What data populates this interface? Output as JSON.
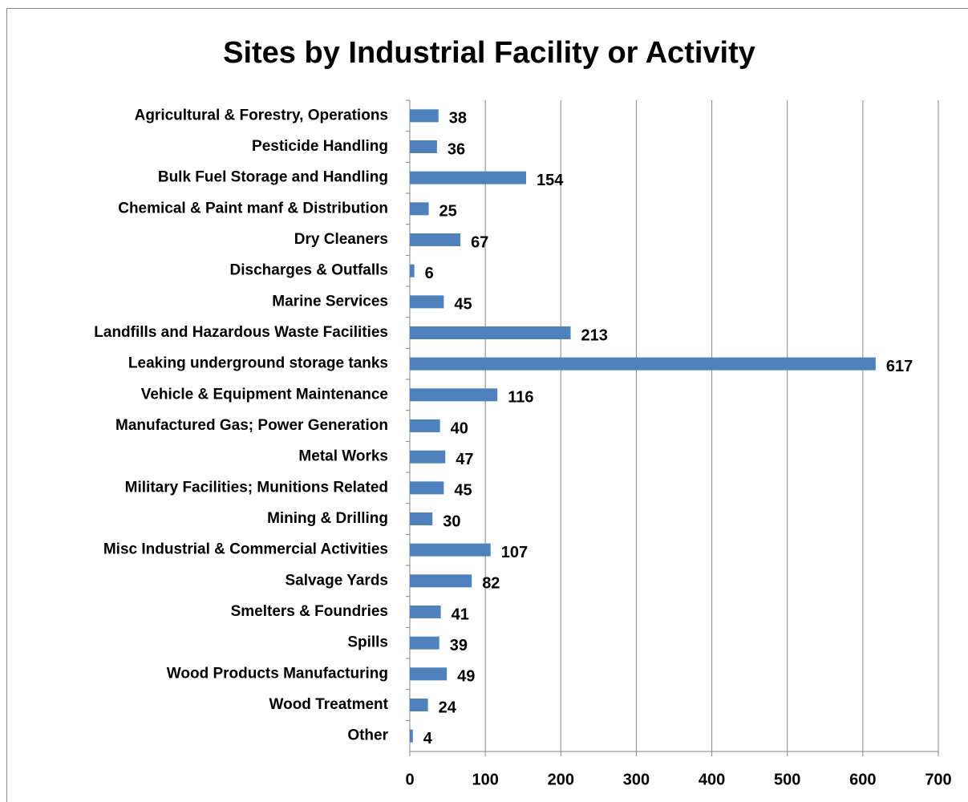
{
  "chart_data": {
    "type": "bar",
    "orientation": "horizontal",
    "title": "Sites by Industrial Facility or Activity",
    "categories": [
      "Agricultural & Forestry, Operations",
      "Pesticide Handling",
      "Bulk Fuel Storage and Handling",
      "Chemical & Paint manf & Distribution",
      "Dry Cleaners",
      "Discharges & Outfalls",
      "Marine Services",
      "Landfills and Hazardous Waste Facilities",
      "Leaking underground storage tanks",
      "Vehicle & Equipment Maintenance",
      "Manufactured Gas; Power Generation",
      "Metal Works",
      "Military Facilities; Munitions Related",
      "Mining & Drilling",
      "Misc Industrial & Commercial Activities",
      "Salvage Yards",
      "Smelters & Foundries",
      "Spills",
      "Wood Products Manufacturing",
      "Wood Treatment",
      "Other"
    ],
    "values": [
      38,
      36,
      154,
      25,
      67,
      6,
      45,
      213,
      617,
      116,
      40,
      47,
      45,
      30,
      107,
      82,
      41,
      39,
      49,
      24,
      4
    ],
    "color": "#4f81bd",
    "xlim": [
      0,
      700
    ],
    "xticks": [
      0,
      100,
      200,
      300,
      400,
      500,
      600,
      700
    ],
    "grid": true
  }
}
